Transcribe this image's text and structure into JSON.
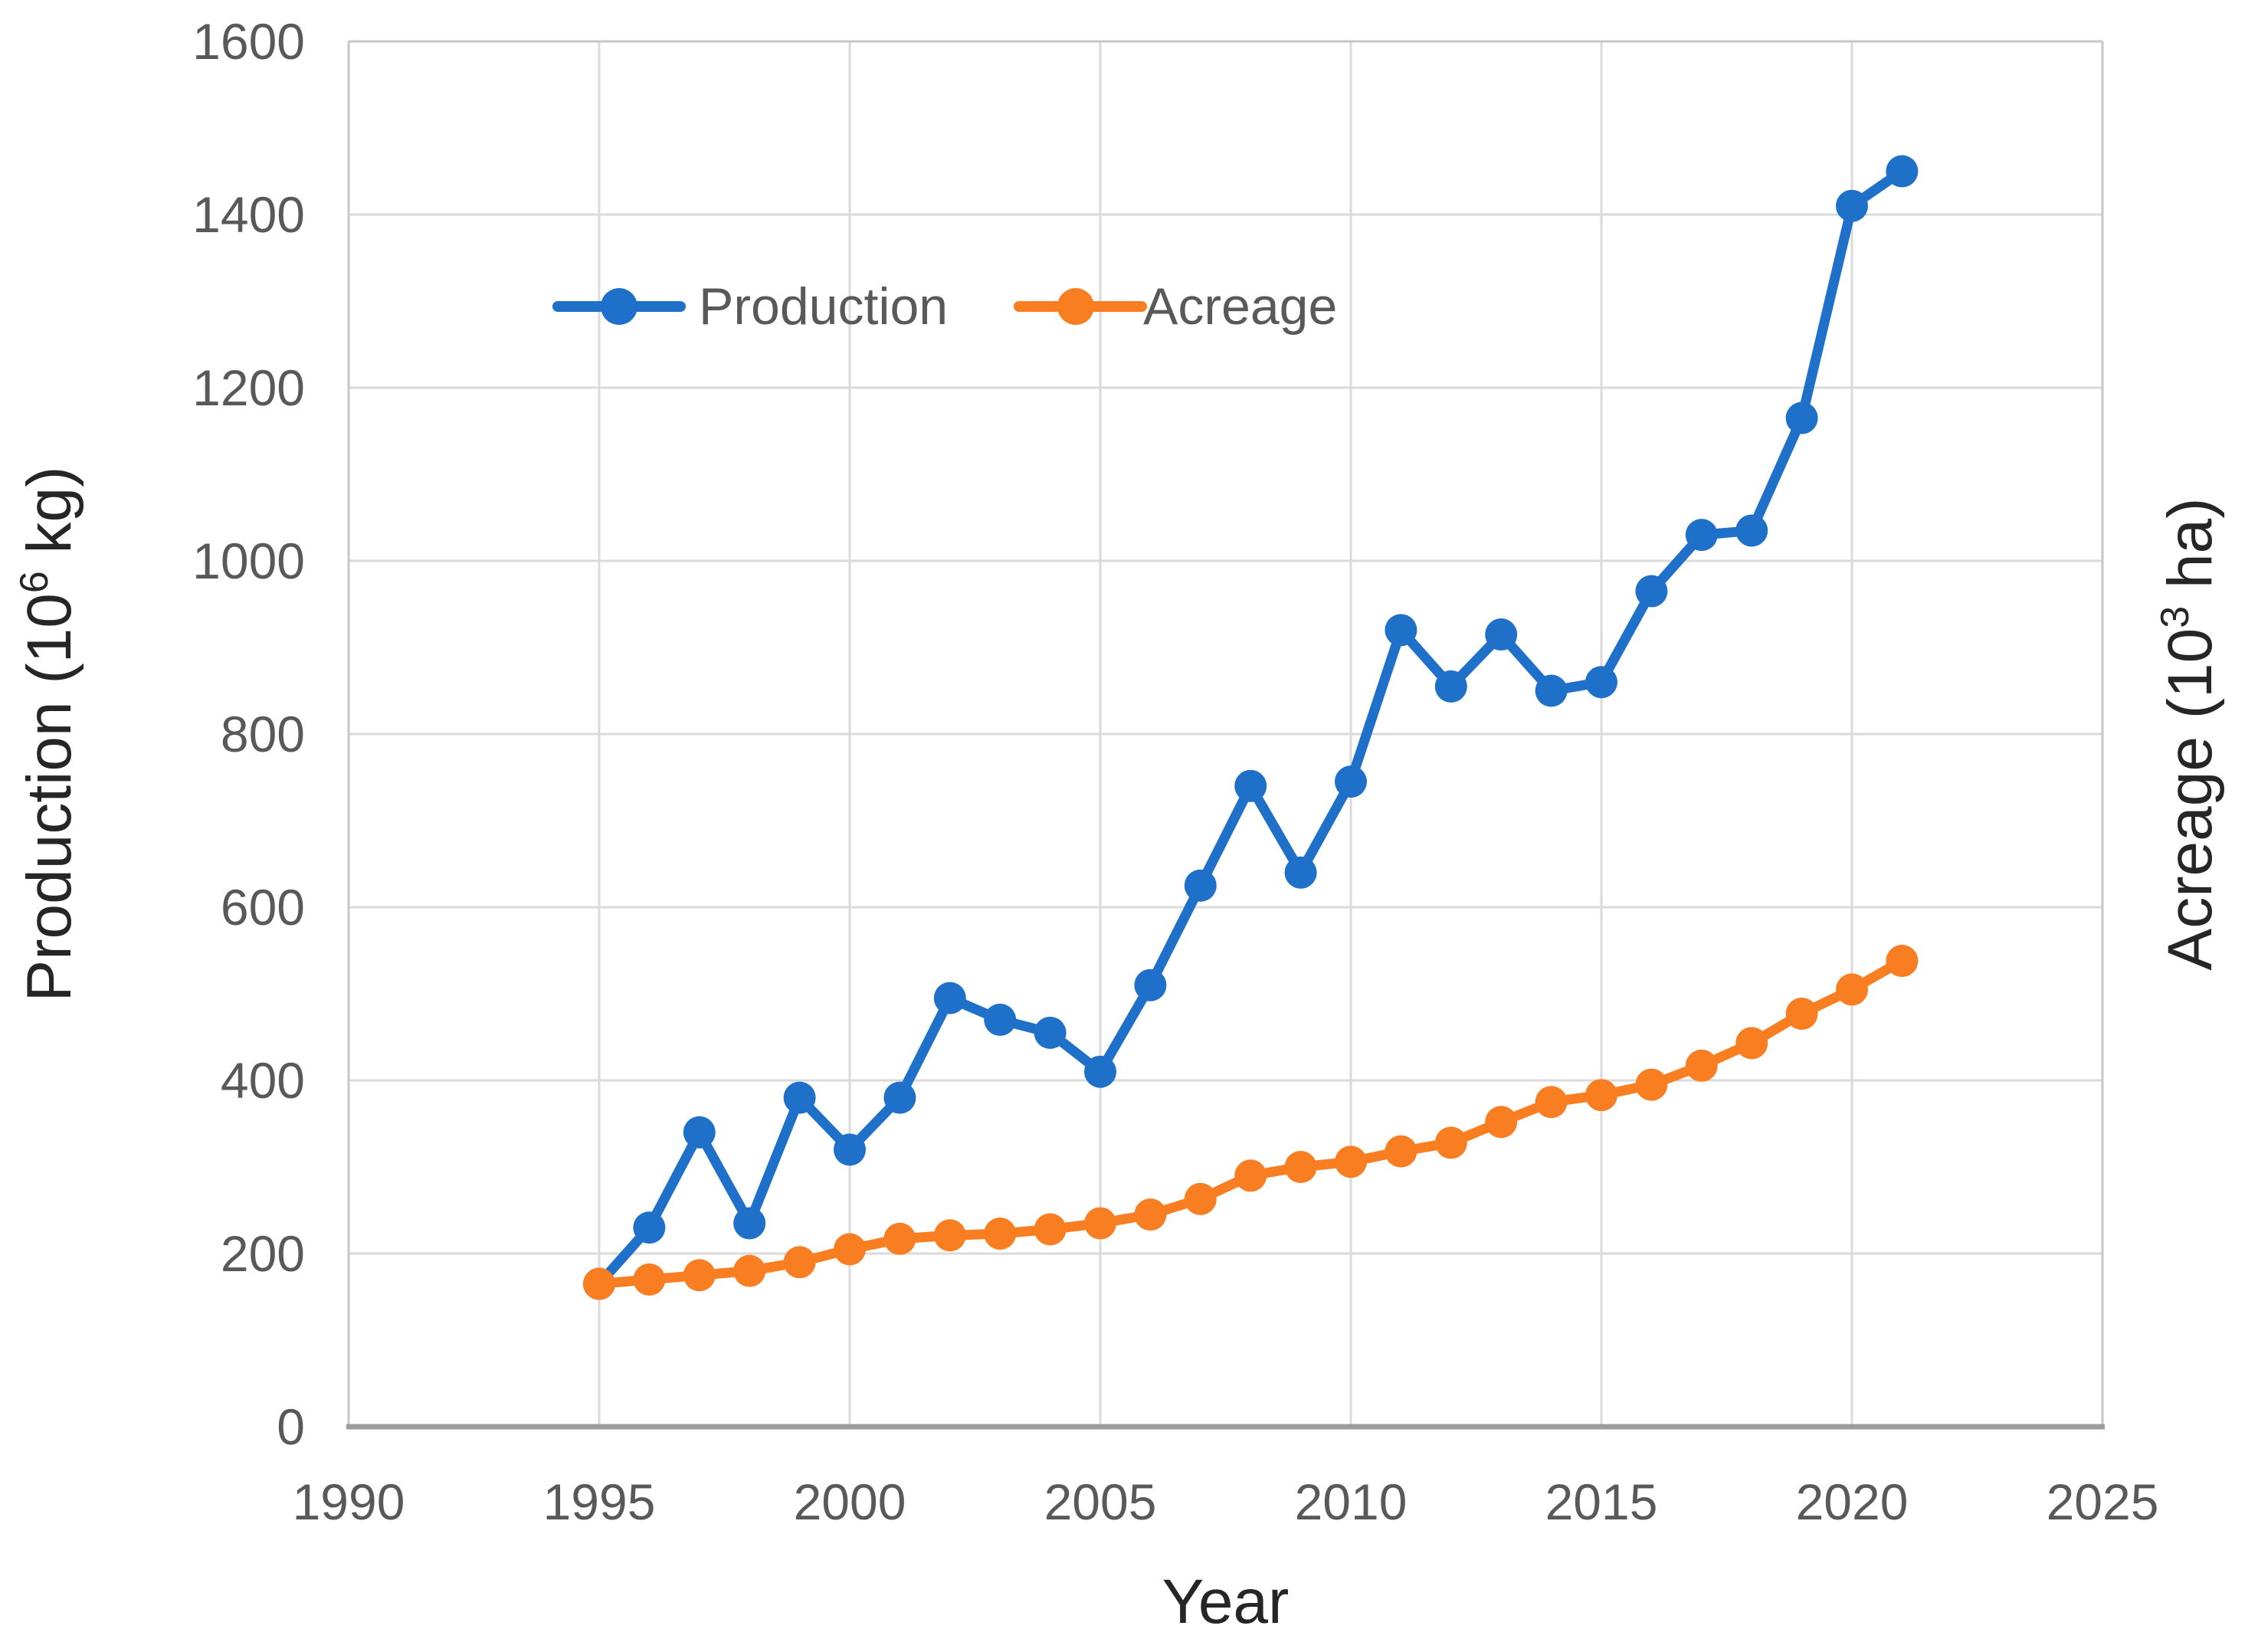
{
  "chart_data": {
    "type": "line",
    "title": "",
    "xlabel": "Year",
    "ylabel_left": {
      "prefix": "Production (10",
      "sup": "6",
      "suffix": " kg)"
    },
    "ylabel_right": {
      "prefix": "Acreage (10",
      "sup": "3",
      "suffix": " ha)"
    },
    "xlim": [
      1990,
      2025
    ],
    "ylim": [
      0,
      1600
    ],
    "x_ticks": [
      1990,
      1995,
      2000,
      2005,
      2010,
      2015,
      2020,
      2025
    ],
    "y_ticks": [
      0,
      200,
      400,
      600,
      800,
      1000,
      1200,
      1400,
      1600
    ],
    "grid": true,
    "legend_position": "inside-top-left",
    "x": [
      1995,
      1996,
      1997,
      1998,
      1999,
      2000,
      2001,
      2002,
      2003,
      2004,
      2005,
      2006,
      2007,
      2008,
      2009,
      2010,
      2011,
      2012,
      2013,
      2014,
      2015,
      2016,
      2017,
      2018,
      2019,
      2020,
      2021
    ],
    "series": [
      {
        "name": "Production",
        "axis": "left",
        "color": "#1F70C8",
        "values": [
          165,
          230,
          340,
          235,
          380,
          320,
          380,
          495,
          470,
          455,
          410,
          510,
          625,
          740,
          640,
          745,
          920,
          855,
          915,
          850,
          860,
          965,
          1030,
          1035,
          1165,
          1410,
          1450
        ]
      },
      {
        "name": "Acreage",
        "axis": "right",
        "color": "#F87E21",
        "values": [
          165,
          170,
          175,
          180,
          190,
          205,
          217,
          221,
          223,
          228,
          235,
          245,
          263,
          290,
          300,
          306,
          318,
          328,
          352,
          375,
          383,
          395,
          417,
          443,
          477,
          505,
          538
        ]
      }
    ]
  }
}
